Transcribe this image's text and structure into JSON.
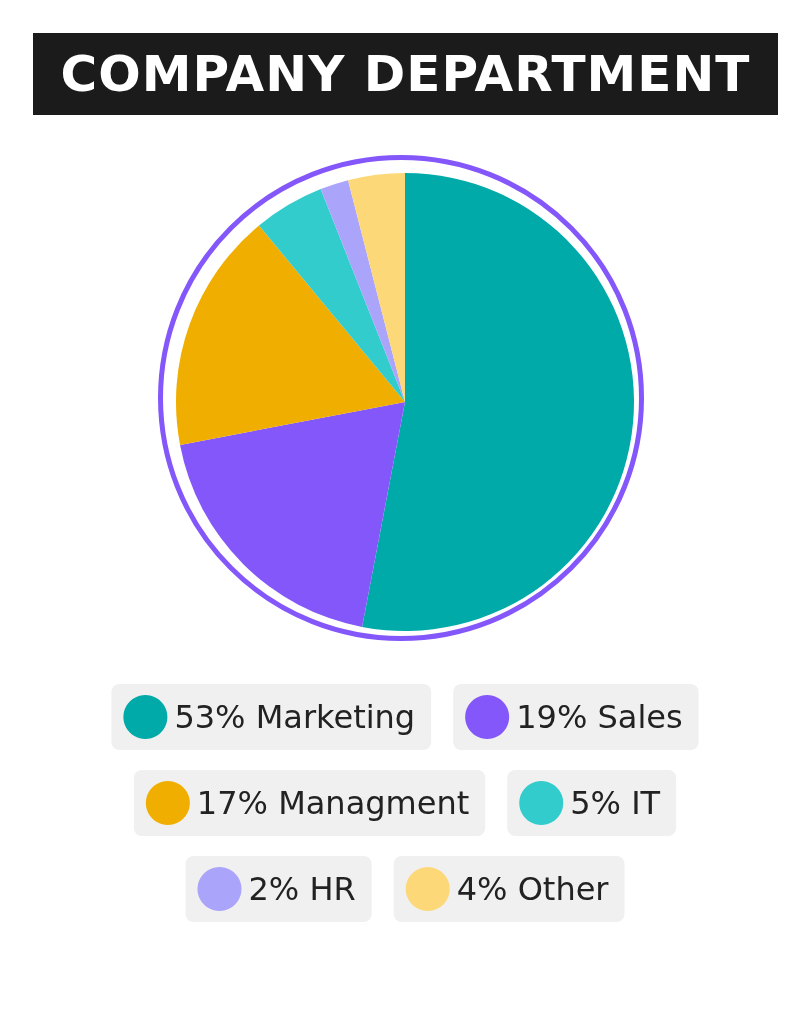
{
  "chart_data": {
    "type": "pie",
    "title": "COMPANY DEPARTMENT",
    "categories": [
      "Marketing",
      "Sales",
      "Managment",
      "IT",
      "HR",
      "Other"
    ],
    "values": [
      53,
      19,
      17,
      5,
      2,
      4
    ],
    "value_labels": [
      "53%",
      "19%",
      "17%",
      "5%",
      "2%",
      "4%"
    ],
    "colors": [
      "#00aaa9",
      "#8457fa",
      "#f0ae00",
      "#33cccc",
      "#aba4fb",
      "#fdd878"
    ],
    "legend": "bottom"
  }
}
